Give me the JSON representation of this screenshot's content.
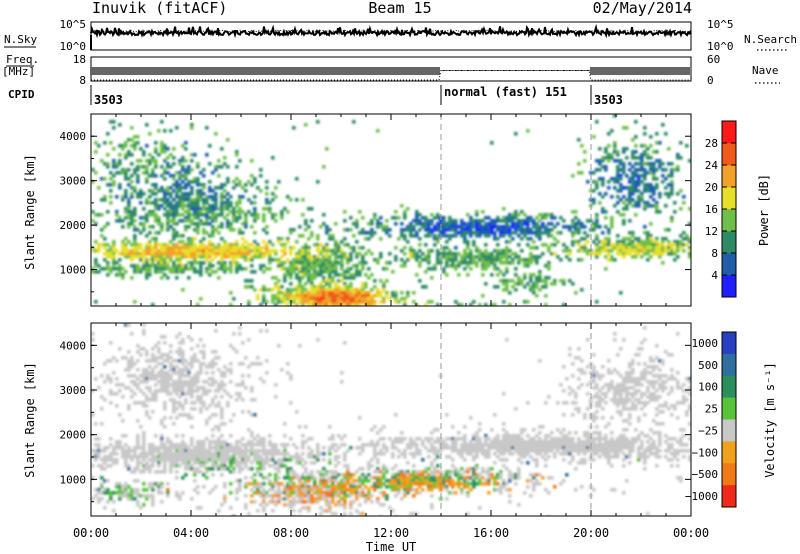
{
  "header": {
    "title": "Inuvik (fitACF)",
    "beam": "Beam 15",
    "date": "02/May/2014"
  },
  "panels": {
    "nsky": {
      "label": "N.Sky",
      "right_label": "N.Search",
      "ticks": [
        "10^5",
        "10^0"
      ]
    },
    "freq": {
      "label_line1": "Freq.",
      "label_line2": "[MHz]",
      "ticks": [
        "18",
        "8"
      ],
      "right_ticks": [
        "60",
        "0"
      ],
      "right_label": "Nave"
    },
    "cpid": {
      "label": "CPID",
      "segments": [
        {
          "start": "00:00",
          "label": "3503"
        },
        {
          "start": "14:00",
          "label": "normal (fast) 151"
        },
        {
          "start": "20:00",
          "label": "3503"
        }
      ]
    }
  },
  "chart_data": [
    {
      "type": "heatmap",
      "title": "Power",
      "xlabel": "",
      "ylabel": "Slant Range [km]",
      "x_range_hours": [
        0,
        24
      ],
      "ylim": [
        180,
        4500
      ],
      "yticks": [
        "1000",
        "2000",
        "3000",
        "4000"
      ],
      "colorbar": {
        "label": "Power [dB]",
        "ticks": [
          "4",
          "8",
          "12",
          "16",
          "20",
          "24",
          "28"
        ],
        "colors": [
          "#1f1fff",
          "#1f5fa8",
          "#2e8a66",
          "#6fbf4a",
          "#e7e02a",
          "#f2a12a",
          "#f05a1a",
          "#ff1a1a"
        ]
      },
      "features": [
        {
          "time_range": [
            "00:00",
            "09:00"
          ],
          "range_km": [
            1000,
            1800
          ],
          "power_db": "12-28"
        },
        {
          "time_range": [
            "07:30",
            "11:30"
          ],
          "range_km": [
            200,
            800
          ],
          "power_db": "28"
        },
        {
          "time_range": [
            "11:00",
            "20:00"
          ],
          "range_km": [
            1600,
            2200
          ],
          "power_db": "4-8"
        },
        {
          "time_range": [
            "20:00",
            "24:00"
          ],
          "range_km": [
            1200,
            1800
          ],
          "power_db": "16-28"
        }
      ]
    },
    {
      "type": "heatmap",
      "title": "Velocity",
      "xlabel": "Time UT",
      "ylabel": "Slant Range [km]",
      "x_range_hours": [
        0,
        24
      ],
      "ylim": [
        180,
        4500
      ],
      "yticks": [
        "1000",
        "2000",
        "3000",
        "4000"
      ],
      "xticks": [
        "00:00",
        "04:00",
        "08:00",
        "12:00",
        "16:00",
        "20:00",
        "00:00"
      ],
      "colorbar": {
        "label": "Velocity [m s⁻¹]",
        "ticks": [
          "1000",
          "500",
          "100",
          "25",
          "−25",
          "−100",
          "−500",
          "−1000"
        ],
        "colors": [
          "#2a3fbf",
          "#2e6fa0",
          "#2a8f5c",
          "#58c23a",
          "#c8c8c8",
          "#f0a21f",
          "#f07a16",
          "#ef2a1a"
        ]
      },
      "features": [
        {
          "time_range": [
            "00:00",
            "11:00"
          ],
          "range_km": [
            1000,
            2000
          ],
          "velocity": "grey / green"
        },
        {
          "time_range": [
            "06:00",
            "18:00"
          ],
          "range_km": [
            300,
            1200
          ],
          "velocity": "green / orange"
        },
        {
          "time_range": [
            "12:00",
            "24:00"
          ],
          "range_km": [
            1500,
            2200
          ],
          "velocity": "grey"
        }
      ]
    }
  ]
}
